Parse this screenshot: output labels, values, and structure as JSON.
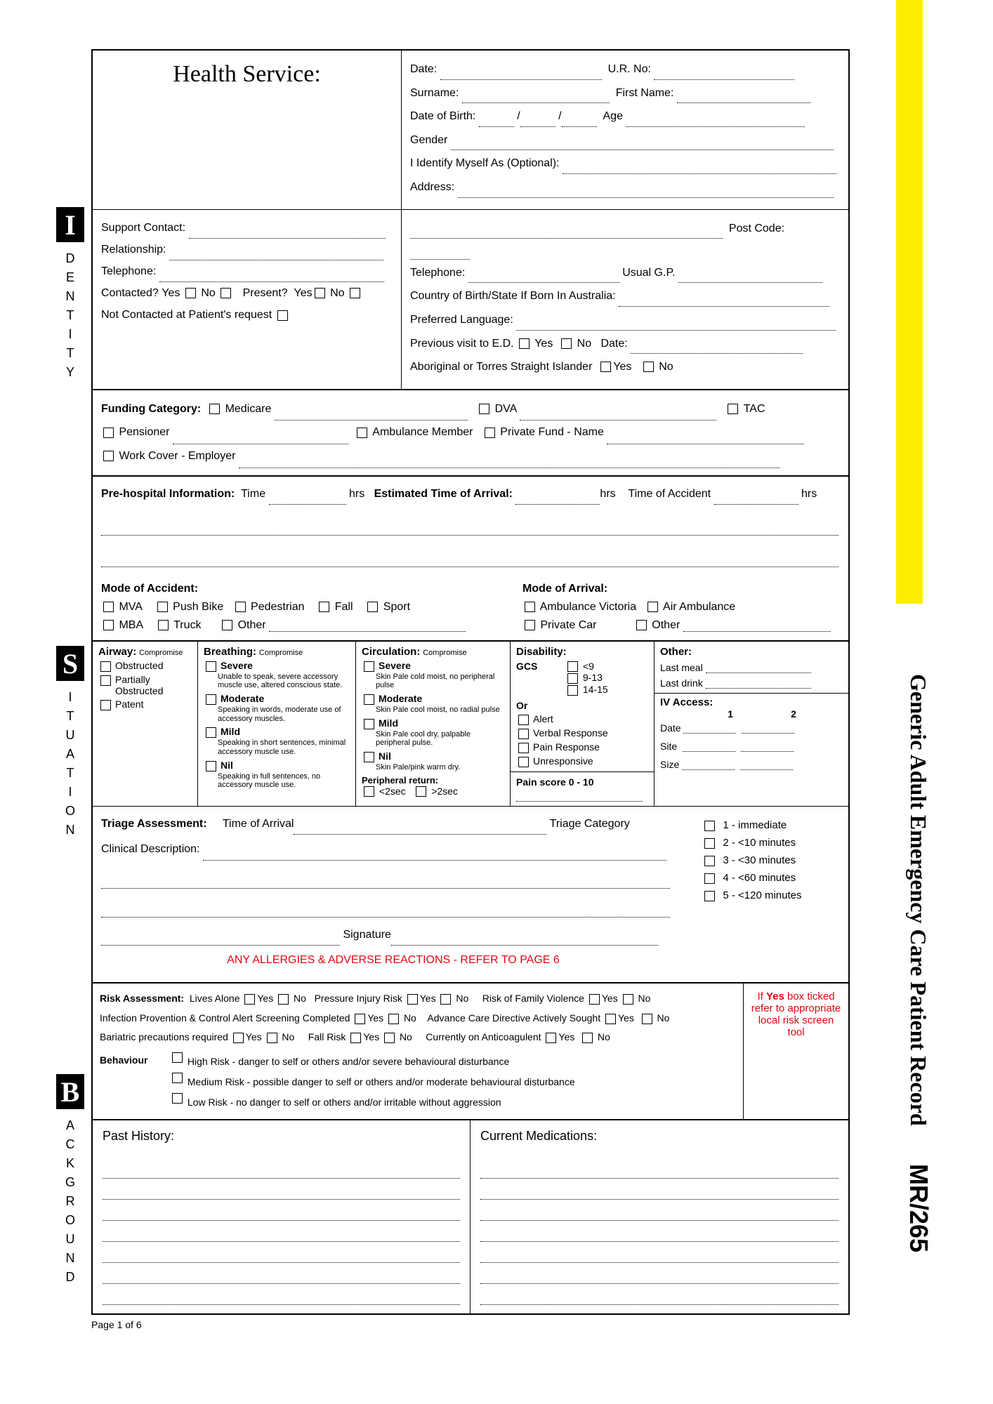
{
  "yellowBar": {
    "color": "#ffed00"
  },
  "sideTitle": "Generic Adult Emergency Care Patient Record",
  "mrCode": "MR/265",
  "sideLabels": {
    "identity": {
      "big": "I",
      "rest": [
        "D",
        "E",
        "N",
        "T",
        "I",
        "T",
        "Y"
      ]
    },
    "situation": {
      "big": "S",
      "rest": [
        "I",
        "T",
        "U",
        "A",
        "T",
        "I",
        "O",
        "N"
      ]
    },
    "background": {
      "big": "B",
      "rest": [
        "A",
        "C",
        "K",
        "G",
        "R",
        "O",
        "U",
        "N",
        "D"
      ]
    }
  },
  "header": {
    "healthService": "Health Service:",
    "fields": {
      "date": "Date:",
      "ur": "U.R. No:",
      "surname": "Surname:",
      "firstName": "First Name:",
      "dob": "Date of Birth:",
      "age": "Age",
      "gender": "Gender",
      "identifyAs": "I Identify Myself As (Optional):",
      "address": "Address:",
      "postCode": "Post Code:",
      "telephone": "Telephone:",
      "usualGP": "Usual G.P.",
      "country": "Country of Birth/State If Born In Australia:",
      "prefLang": "Preferred Language:",
      "prevVisit": "Previous visit to E.D.",
      "yes": "Yes",
      "no": "No",
      "prevDate": "Date:",
      "atsi": "Aboriginal or Torres Straight Islander"
    }
  },
  "support": {
    "contact": "Support Contact:",
    "relationship": "Relationship:",
    "telephone": "Telephone:",
    "contacted": "Contacted?",
    "present": "Present?",
    "notContacted": "Not Contacted at Patient's request"
  },
  "funding": {
    "title": "Funding Category:",
    "medicare": "Medicare",
    "dva": "DVA",
    "tac": "TAC",
    "pensioner": "Pensioner",
    "ambMember": "Ambulance Member",
    "privateFund": "Private Fund - Name",
    "workCover": "Work Cover - Employer"
  },
  "prehosp": {
    "title": "Pre-hospital Information:",
    "time": "Time",
    "hrs": "hrs",
    "eta": "Estimated Time of Arrival:",
    "toa": "Time of Accident"
  },
  "accident": {
    "modeAccident": "Mode of Accident:",
    "modeArrival": "Mode of Arrival:",
    "mva": "MVA",
    "pushBike": "Push Bike",
    "pedestrian": "Pedestrian",
    "fall": "Fall",
    "sport": "Sport",
    "mba": "MBA",
    "truck": "Truck",
    "other": "Other",
    "ambVic": "Ambulance Victoria",
    "airAmb": "Air Ambulance",
    "privateCar": "Private Car"
  },
  "situation": {
    "airway": {
      "title": "Airway:",
      "sub": "Compromise",
      "opts": [
        "Obstructed",
        "Partially Obstructed",
        "Patent"
      ]
    },
    "breathing": {
      "title": "Breathing:",
      "sub": "Compromise",
      "levels": [
        {
          "name": "Severe",
          "desc": "Unable to speak, severe accessory muscle use, altered conscious state."
        },
        {
          "name": "Moderate",
          "desc": "Speaking in words, moderate use of accessory muscles."
        },
        {
          "name": "Mild",
          "desc": "Speaking in short sentences, minimal accessory muscle use."
        },
        {
          "name": "Nil",
          "desc": "Speaking in full sentences, no accessory muscle use."
        }
      ]
    },
    "circulation": {
      "title": "Circulation:",
      "sub": "Compromise",
      "levels": [
        {
          "name": "Severe",
          "desc": "Skin Pale cold moist, no peripheral pulse"
        },
        {
          "name": "Moderate",
          "desc": "Skin Pale cool moist, no radial pulse"
        },
        {
          "name": "Mild",
          "desc": "Skin Pale cool dry, palpable peripheral pulse."
        },
        {
          "name": "Nil",
          "desc": "Skin Pale/pink warm dry."
        }
      ],
      "pr": "Peripheral return:",
      "lt2": "<2sec",
      "gt2": ">2sec"
    },
    "disability": {
      "title": "Disability:",
      "gcs": "GCS",
      "ranges": [
        "<9",
        "9-13",
        "14-15"
      ],
      "or": "Or",
      "opts": [
        "Alert",
        "Verbal Response",
        "Pain Response",
        "Unresponsive"
      ],
      "pain": "Pain score 0 - 10"
    },
    "other": {
      "title": "Other:",
      "lastMeal": "Last meal",
      "lastDrink": "Last drink",
      "iv": "IV Access:",
      "col1": "1",
      "col2": "2",
      "date": "Date",
      "site": "Site",
      "size": "Size"
    }
  },
  "triage": {
    "title": "Triage Assessment:",
    "toa": "Time of Arrival",
    "category": "Triage Category",
    "clinDesc": "Clinical Description:",
    "sig": "Signature",
    "cats": [
      "1 - immediate",
      "2 -  <10 minutes",
      "3 -  <30 minutes",
      "4 -  <60 minutes",
      "5 -  <120 minutes"
    ]
  },
  "allergies": "ANY ALLERGIES & ADVERSE REACTIONS - REFER TO PAGE 6",
  "risk": {
    "title": "Risk Assessment:",
    "livesAlone": "Lives Alone",
    "pressureRisk": "Pressure Injury Risk",
    "familyViolence": "Risk of Family Violence",
    "infControl": "Infection Provention & Control Alert Screening Completed",
    "advanceCare": "Advance Care Directive Actively Sought",
    "bariatric": "Bariatric precautions required",
    "fallRisk": "Fall Risk",
    "anticoag": "Currently on Anticoagulent",
    "yes": "Yes",
    "no": "No",
    "behaviour": "Behaviour",
    "behHigh": "High Risk - danger to self or others and/or severe behavioural disturbance",
    "behMed": "Medium Risk - possible danger to self or others and/or moderate behavioural disturbance",
    "behLow": "Low Risk - no danger to self or others and/or irritable without aggression",
    "redBox": "If Yes box ticked refer to appropriate local risk screen tool",
    "ifYes": "If Yes"
  },
  "history": {
    "past": "Past History:",
    "current": "Current Medications:"
  },
  "footer": "Page 1 of 6"
}
